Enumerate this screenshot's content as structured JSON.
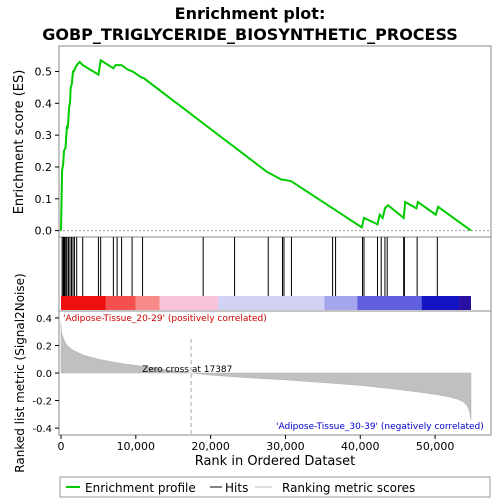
{
  "chart_data": {
    "type": "line",
    "title": "Enrichment plot:",
    "subtitle": "GOBP_TRIGLYCERIDE_BIOSYNTHETIC_PROCESS",
    "xlabel": "Rank in Ordered Dataset",
    "top_panel": {
      "ylabel": "Enrichment score (ES)",
      "ylim": [
        -0.02,
        0.58
      ],
      "yticks": [
        "0.0",
        "0.1",
        "0.2",
        "0.3",
        "0.4",
        "0.5"
      ],
      "ytick_values": [
        0.0,
        0.1,
        0.2,
        0.3,
        0.4,
        0.5
      ],
      "series": [
        {
          "name": "Enrichment profile",
          "color": "#00cc00",
          "x": [
            0,
            150,
            300,
            400,
            600,
            800,
            900,
            1100,
            1200,
            1300,
            1450,
            1600,
            1700,
            1900,
            2100,
            2500,
            2900,
            5000,
            5300,
            7000,
            7300,
            7700,
            8100,
            9000,
            9600,
            10800,
            11000,
            27500,
            29500,
            29800,
            30800,
            40200,
            40500,
            42300,
            42600,
            43000,
            43300,
            43700,
            45800,
            46000,
            47500,
            47700,
            50100,
            50400,
            54800
          ],
          "values": [
            0.0,
            0.19,
            0.21,
            0.25,
            0.26,
            0.33,
            0.32,
            0.39,
            0.4,
            0.45,
            0.46,
            0.5,
            0.5,
            0.51,
            0.52,
            0.53,
            0.52,
            0.49,
            0.535,
            0.51,
            0.52,
            0.52,
            0.52,
            0.505,
            0.5,
            0.48,
            0.48,
            0.185,
            0.16,
            0.16,
            0.155,
            0.01,
            0.04,
            0.02,
            0.05,
            0.04,
            0.07,
            0.08,
            0.04,
            0.09,
            0.07,
            0.09,
            0.05,
            0.075,
            0.0
          ]
        }
      ]
    },
    "hits": {
      "name": "Hits",
      "color": "#000000",
      "x": [
        150,
        300,
        400,
        500,
        650,
        800,
        1000,
        1200,
        1400,
        1600,
        1800,
        2100,
        2900,
        5000,
        5300,
        7000,
        7500,
        8100,
        9500,
        10900,
        19000,
        23200,
        27700,
        29600,
        29800,
        30800,
        36300,
        36700,
        40300,
        40500,
        42300,
        42800,
        43300,
        43600,
        45800,
        45900,
        47600,
        50300
      ]
    },
    "color_bar": {
      "segments": [
        {
          "from": 0,
          "to": 6000,
          "color": "#ee1010"
        },
        {
          "from": 6000,
          "to": 10000,
          "color": "#f55050"
        },
        {
          "from": 10000,
          "to": 13200,
          "color": "#f88a8a"
        },
        {
          "from": 13200,
          "to": 21000,
          "color": "#f8c4dc"
        },
        {
          "from": 21000,
          "to": 35200,
          "color": "#d2d2f4"
        },
        {
          "from": 35200,
          "to": 39600,
          "color": "#a6a6ee"
        },
        {
          "from": 39600,
          "to": 48200,
          "color": "#6060e0"
        },
        {
          "from": 48200,
          "to": 53200,
          "color": "#1414c4"
        },
        {
          "from": 53200,
          "to": 54800,
          "color": "#2a10a0"
        }
      ]
    },
    "bottom_panel": {
      "ylabel": "Ranked list metric (Signal2Noise)",
      "ylim": [
        -0.45,
        0.45
      ],
      "yticks": [
        "-0.4",
        "-0.2",
        "0.0",
        "0.2",
        "0.4"
      ],
      "ytick_values": [
        -0.4,
        -0.2,
        0.0,
        0.2,
        0.4
      ],
      "x_max": 54800,
      "metric_profile": {
        "x": [
          0,
          50,
          100,
          200,
          400,
          700,
          1000,
          1500,
          2000,
          3000,
          4000,
          5000,
          6000,
          8000,
          10000,
          12000,
          14000,
          17387,
          20000,
          25000,
          30000,
          35000,
          40000,
          45000,
          48000,
          50000,
          52000,
          53000,
          53800,
          54300,
          54600,
          54800
        ],
        "values": [
          0.36,
          0.31,
          0.29,
          0.27,
          0.24,
          0.21,
          0.19,
          0.17,
          0.155,
          0.13,
          0.115,
          0.1,
          0.09,
          0.07,
          0.055,
          0.04,
          0.025,
          0.0,
          -0.015,
          -0.035,
          -0.05,
          -0.07,
          -0.09,
          -0.12,
          -0.14,
          -0.155,
          -0.175,
          -0.19,
          -0.21,
          -0.24,
          -0.28,
          -0.34
        ]
      },
      "zero_cross_label": "Zero cross at 17387",
      "zero_cross": 17387,
      "positive_label": "'Adipose-Tissue_20-29' (positively correlated)",
      "negative_label": "'Adipose-Tissue_30-39' (negatively correlated)"
    },
    "xticks": [
      "0",
      "10,000",
      "20,000",
      "30,000",
      "40,000",
      "50,000"
    ],
    "xtick_values": [
      0,
      10000,
      20000,
      30000,
      40000,
      50000
    ],
    "x_max": 54800,
    "legend": {
      "position": "bottom",
      "items": [
        {
          "label": "Enrichment profile",
          "color": "#00cc00"
        },
        {
          "label": "Hits",
          "color": "#000000"
        },
        {
          "label": "Ranking metric scores",
          "color": "#c0c0c0"
        }
      ]
    }
  }
}
